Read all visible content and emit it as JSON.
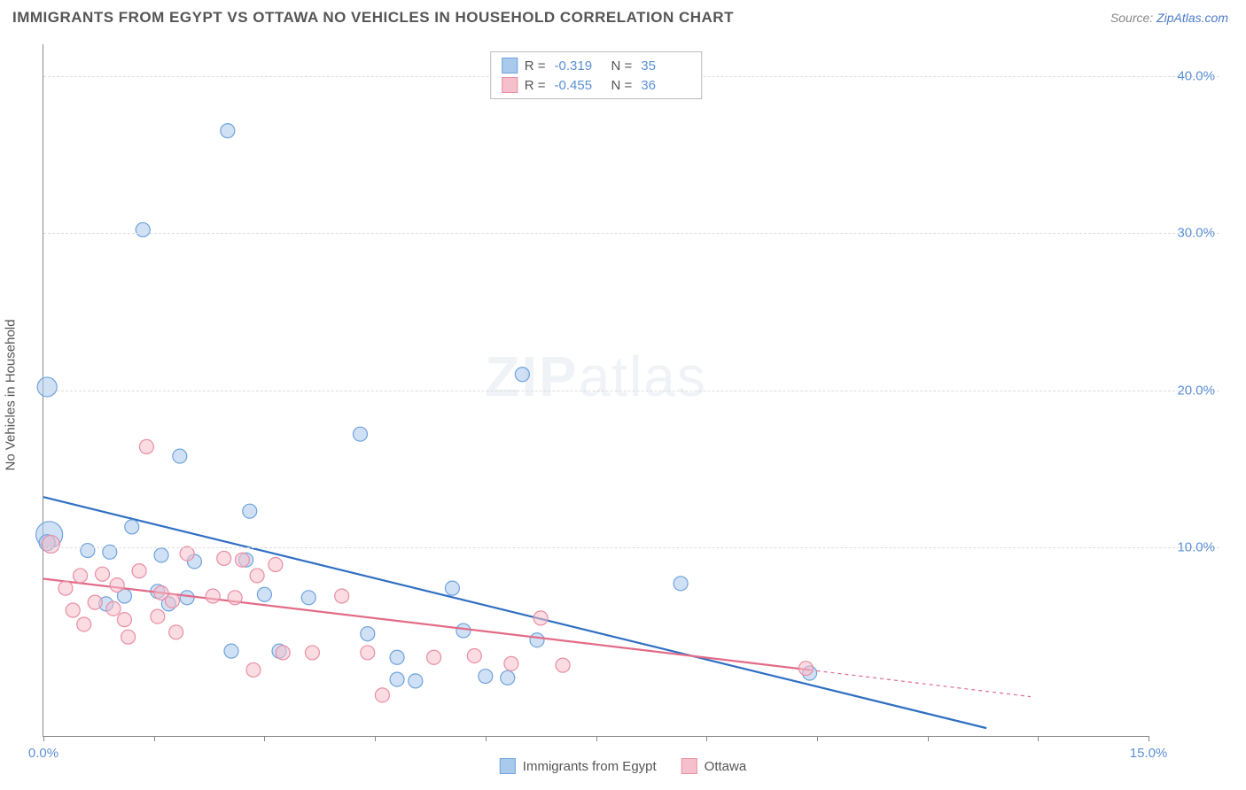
{
  "title": "IMMIGRANTS FROM EGYPT VS OTTAWA NO VEHICLES IN HOUSEHOLD CORRELATION CHART",
  "source_prefix": "Source: ",
  "source_link": "ZipAtlas.com",
  "ylabel": "No Vehicles in Household",
  "watermark_a": "ZIP",
  "watermark_b": "atlas",
  "chart": {
    "type": "scatter",
    "xlim": [
      0,
      15
    ],
    "ylim": [
      -2,
      42
    ],
    "xticks": [
      0,
      1.5,
      3.0,
      4.5,
      6.0,
      7.5,
      9.0,
      10.5,
      12.0,
      13.5,
      15.0
    ],
    "xtick_labels_shown": {
      "0": "0.0%",
      "15": "15.0%"
    },
    "grid_y": [
      10,
      20,
      30,
      40
    ],
    "ytick_labels": {
      "10": "10.0%",
      "20": "20.0%",
      "30": "30.0%",
      "40": "40.0%"
    },
    "background_color": "#ffffff",
    "grid_color": "#dddddd",
    "axis_color": "#888888",
    "tick_label_color": "#5b8fd6",
    "point_radius": 8,
    "point_opacity": 0.55,
    "line_width": 2.2,
    "series": [
      {
        "name": "Immigrants from Egypt",
        "color_fill": "#a9c9ed",
        "color_stroke": "#6fa3dc",
        "line_color": "#2f6fc2",
        "R": "-0.319",
        "N": "35",
        "trend": {
          "x1": 0,
          "y1": 13.2,
          "x2": 12.8,
          "y2": -1.5
        },
        "points": [
          [
            0.05,
            20.2,
            11
          ],
          [
            0.08,
            10.8,
            15
          ],
          [
            0.05,
            10.3,
            9
          ],
          [
            0.6,
            9.8,
            8
          ],
          [
            0.85,
            6.4,
            8
          ],
          [
            0.9,
            9.7,
            8
          ],
          [
            1.1,
            6.9,
            8
          ],
          [
            1.2,
            11.3,
            8
          ],
          [
            1.35,
            30.2,
            8
          ],
          [
            1.55,
            7.2,
            8
          ],
          [
            1.6,
            9.5,
            8
          ],
          [
            1.7,
            6.4,
            8
          ],
          [
            1.85,
            15.8,
            8
          ],
          [
            1.95,
            6.8,
            8
          ],
          [
            2.05,
            9.1,
            8
          ],
          [
            2.5,
            36.5,
            8
          ],
          [
            2.55,
            3.4,
            8
          ],
          [
            2.75,
            9.2,
            8
          ],
          [
            2.8,
            12.3,
            8
          ],
          [
            3.0,
            7.0,
            8
          ],
          [
            3.2,
            3.4,
            8
          ],
          [
            3.6,
            6.8,
            8
          ],
          [
            4.3,
            17.2,
            8
          ],
          [
            4.4,
            4.5,
            8
          ],
          [
            4.8,
            3.0,
            8
          ],
          [
            4.8,
            1.6,
            8
          ],
          [
            5.05,
            1.5,
            8
          ],
          [
            5.55,
            7.4,
            8
          ],
          [
            5.7,
            4.7,
            8
          ],
          [
            6.0,
            1.8,
            8
          ],
          [
            6.3,
            1.7,
            8
          ],
          [
            6.5,
            21.0,
            8
          ],
          [
            6.7,
            4.1,
            8
          ],
          [
            8.65,
            7.7,
            8
          ],
          [
            10.4,
            2.0,
            8
          ]
        ]
      },
      {
        "name": "Ottawa",
        "color_fill": "#f5c0cb",
        "color_stroke": "#e98ea3",
        "line_color": "#e26b88",
        "R": "-0.455",
        "N": "36",
        "trend": {
          "x1": 0,
          "y1": 8.0,
          "x2": 10.4,
          "y2": 2.2
        },
        "trend_dash_ext": {
          "x1": 10.4,
          "y1": 2.2,
          "x2": 13.4,
          "y2": 0.5
        },
        "points": [
          [
            0.1,
            10.2,
            10
          ],
          [
            0.3,
            7.4,
            8
          ],
          [
            0.4,
            6.0,
            8
          ],
          [
            0.5,
            8.2,
            8
          ],
          [
            0.55,
            5.1,
            8
          ],
          [
            0.7,
            6.5,
            8
          ],
          [
            0.8,
            8.3,
            8
          ],
          [
            0.95,
            6.1,
            8
          ],
          [
            1.0,
            7.6,
            8
          ],
          [
            1.1,
            5.4,
            8
          ],
          [
            1.15,
            4.3,
            8
          ],
          [
            1.3,
            8.5,
            8
          ],
          [
            1.4,
            16.4,
            8
          ],
          [
            1.55,
            5.6,
            8
          ],
          [
            1.6,
            7.1,
            8
          ],
          [
            1.75,
            6.6,
            8
          ],
          [
            1.8,
            4.6,
            8
          ],
          [
            1.95,
            9.6,
            8
          ],
          [
            2.3,
            6.9,
            8
          ],
          [
            2.45,
            9.3,
            8
          ],
          [
            2.6,
            6.8,
            8
          ],
          [
            2.7,
            9.2,
            8
          ],
          [
            2.85,
            2.2,
            8
          ],
          [
            2.9,
            8.2,
            8
          ],
          [
            3.15,
            8.9,
            8
          ],
          [
            3.25,
            3.3,
            8
          ],
          [
            3.65,
            3.3,
            8
          ],
          [
            4.05,
            6.9,
            8
          ],
          [
            4.4,
            3.3,
            8
          ],
          [
            4.6,
            0.6,
            8
          ],
          [
            5.3,
            3.0,
            8
          ],
          [
            5.85,
            3.1,
            8
          ],
          [
            6.35,
            2.6,
            8
          ],
          [
            6.75,
            5.5,
            8
          ],
          [
            7.05,
            2.5,
            8
          ],
          [
            10.35,
            2.3,
            8
          ]
        ]
      }
    ]
  },
  "legend_top": {
    "R_label": "R =",
    "N_label": "N ="
  },
  "legend_bottom": [
    {
      "label": "Immigrants from Egypt",
      "fill": "#a9c9ed",
      "stroke": "#6fa3dc"
    },
    {
      "label": "Ottawa",
      "fill": "#f5c0cb",
      "stroke": "#e98ea3"
    }
  ]
}
